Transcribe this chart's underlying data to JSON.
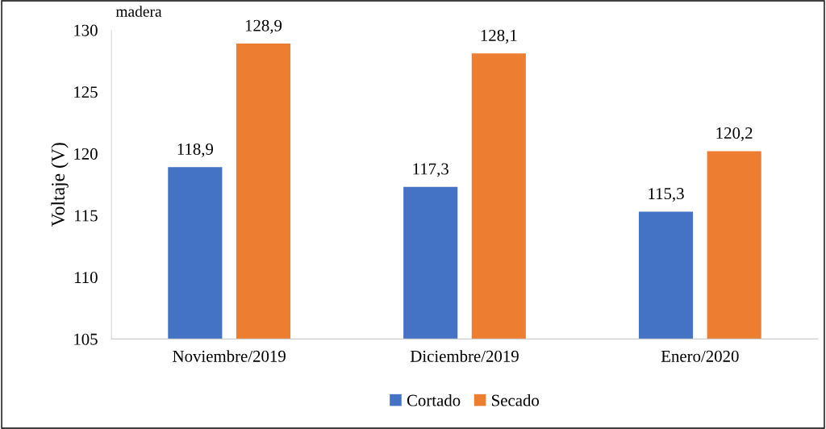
{
  "chart_data": {
    "type": "bar",
    "title": "madera",
    "ylabel": "Voltaje (V)",
    "categories": [
      "Noviembre/2019",
      "Diciembre/2019",
      "Enero/2020"
    ],
    "series": [
      {
        "name": "Cortado",
        "color": "#4472c4",
        "values": [
          118.9,
          117.3,
          115.3
        ],
        "value_labels": [
          "118,9",
          "117,3",
          "115,3"
        ]
      },
      {
        "name": "Secado",
        "color": "#ed7d31",
        "values": [
          128.9,
          128.1,
          120.2
        ],
        "value_labels": [
          "128,9",
          "128,1",
          "120,2"
        ]
      }
    ],
    "ylim": [
      105,
      130
    ],
    "yticks": [
      105,
      110,
      115,
      120,
      125,
      130
    ],
    "grid": false,
    "legend": "bottom"
  }
}
